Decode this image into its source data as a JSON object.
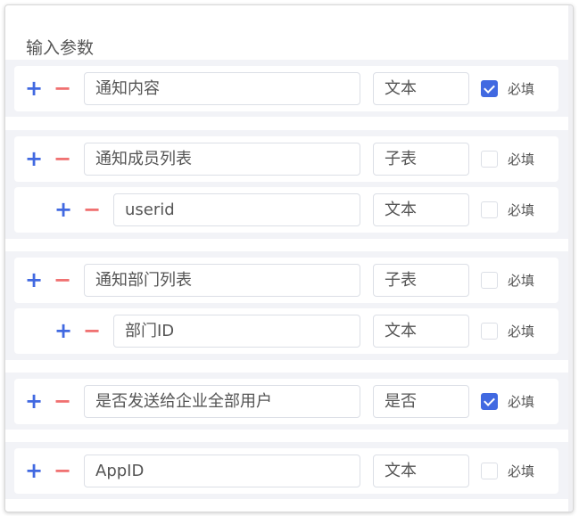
{
  "title": "输入参数",
  "required_label": "必填",
  "groups": [
    {
      "rows": [
        {
          "name": "通知内容",
          "type": "文本",
          "required": true,
          "child": false
        }
      ]
    },
    {
      "rows": [
        {
          "name": "通知成员列表",
          "type": "子表",
          "required": false,
          "child": false
        },
        {
          "name": "userid",
          "type": "文本",
          "required": false,
          "child": true
        }
      ]
    },
    {
      "rows": [
        {
          "name": "通知部门列表",
          "type": "子表",
          "required": false,
          "child": false
        },
        {
          "name": "部门ID",
          "type": "文本",
          "required": false,
          "child": true
        }
      ]
    },
    {
      "rows": [
        {
          "name": "是否发送给企业全部用户",
          "type": "是否",
          "required": true,
          "child": false
        }
      ]
    },
    {
      "rows": [
        {
          "name": "AppID",
          "type": "文本",
          "required": false,
          "child": false
        }
      ]
    }
  ],
  "colors": {
    "accent": "#4169e1",
    "remove": "#f07070",
    "group_bg": "#f2f3f7"
  }
}
